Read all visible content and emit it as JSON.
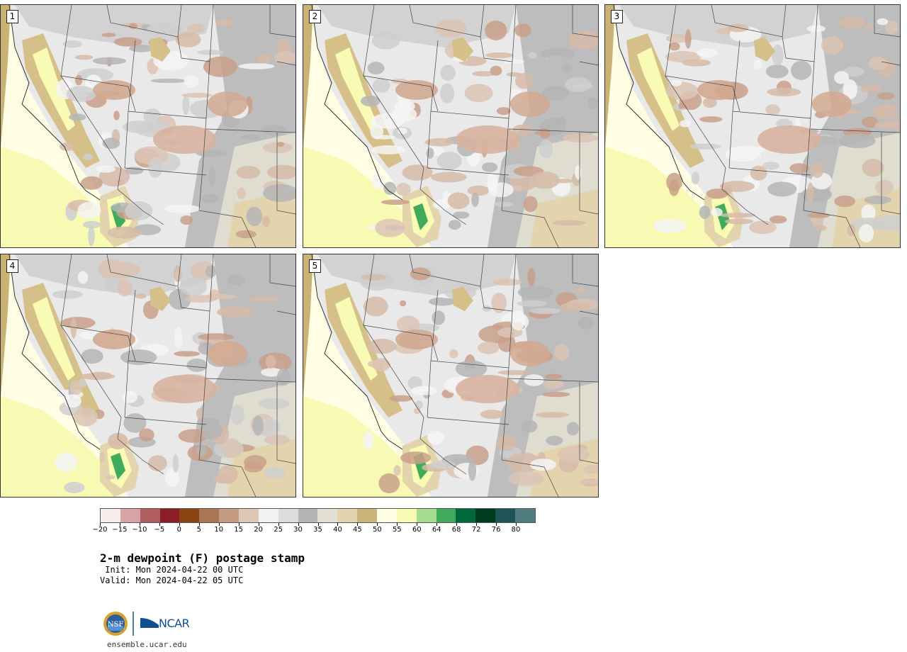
{
  "panels": [
    {
      "label": "1"
    },
    {
      "label": "2"
    },
    {
      "label": "3"
    },
    {
      "label": "4"
    },
    {
      "label": "5"
    }
  ],
  "colorbar": {
    "colors": [
      "#f7ebec",
      "#d7a4a6",
      "#b05d62",
      "#8c1c28",
      "#8b4513",
      "#a97755",
      "#c49a80",
      "#dfc7b8",
      "#f2f2f2",
      "#dcdcdc",
      "#b5b5b5",
      "#e1e0d2",
      "#e3d4ad",
      "#cdb47b",
      "#fffee6",
      "#f9fbb4",
      "#a6dc8f",
      "#40ac5b",
      "#00693a",
      "#003c20",
      "#1f5458",
      "#4f7d80"
    ],
    "ticks": [
      "−20",
      "−15",
      "−10",
      "−5",
      "0",
      "5",
      "10",
      "15",
      "20",
      "25",
      "30",
      "35",
      "40",
      "45",
      "50",
      "55",
      "60",
      "64",
      "68",
      "72",
      "76",
      "80"
    ]
  },
  "title": "2-m dewpoint (F) postage stamp",
  "init": " Init: Mon 2024-04-22 00 UTC",
  "valid": "Valid: Mon 2024-04-22 05 UTC",
  "logos": {
    "nsf": "NSF",
    "ncar": "NCAR"
  },
  "website": "ensemble.ucar.edu"
}
